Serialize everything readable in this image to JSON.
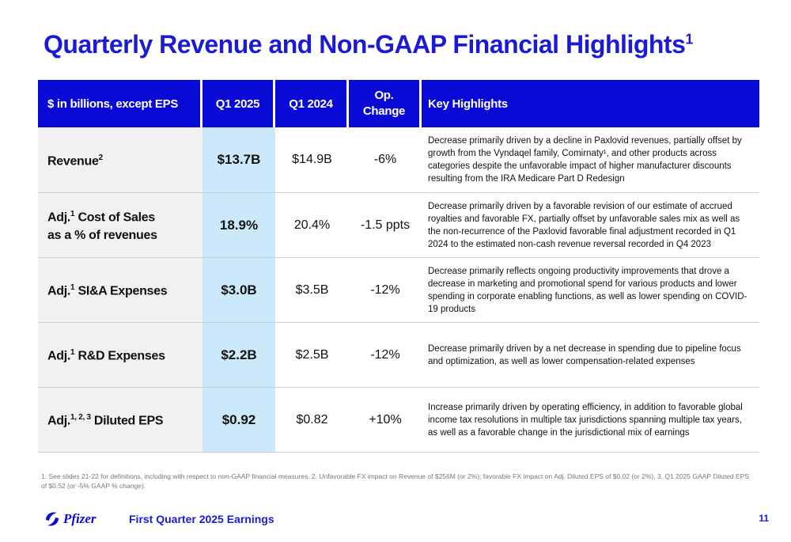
{
  "title": {
    "text": "Quarterly Revenue and Non-GAAP Financial Highlights",
    "sup": "1"
  },
  "table": {
    "headers": [
      "$ in billions, except EPS",
      "Q1 2025",
      "Q1 2024",
      "Op. Change",
      "Key Highlights"
    ],
    "rows": [
      {
        "label": "Revenue",
        "label_sup": "2",
        "q1_2025": "$13.7B",
        "q1_2024": "$14.9B",
        "change": "-6%",
        "highlight": "Decrease primarily driven by a decline in Paxlovid revenues, partially offset by growth from the Vyndaqel family, Comirnaty¹, and other products across categories despite the unfavorable impact of higher manufacturer discounts resulting from the IRA Medicare Part D Redesign"
      },
      {
        "label_prefix": "Adj.",
        "label_sup": "1",
        "label": "Cost of Sales",
        "label_line2": "as a % of revenues",
        "q1_2025": "18.9%",
        "q1_2024": "20.4%",
        "change": "-1.5 ppts",
        "highlight": "Decrease primarily driven by a favorable revision of our estimate of accrued royalties and favorable FX, partially offset by unfavorable sales mix as well as the non-recurrence of the Paxlovid favorable final adjustment recorded in Q1 2024 to the estimated non-cash revenue reversal recorded in Q4 2023"
      },
      {
        "label_prefix": "Adj.",
        "label_sup": "1",
        "label": "SI&A Expenses",
        "q1_2025": "$3.0B",
        "q1_2024": "$3.5B",
        "change": "-12%",
        "highlight": "Decrease primarily reflects ongoing productivity improvements that drove a decrease in marketing and promotional spend for various products and lower spending in corporate enabling functions, as well as lower spending on COVID-19 products"
      },
      {
        "label_prefix": "Adj.",
        "label_sup": "1",
        "label": "R&D Expenses",
        "q1_2025": "$2.2B",
        "q1_2024": "$2.5B",
        "change": "-12%",
        "highlight": "Decrease primarily driven by a net decrease in spending due to pipeline focus and optimization, as well as lower compensation-related expenses"
      },
      {
        "label_prefix": "Adj.",
        "label_sup": "1, 2, 3",
        "label": "Diluted EPS",
        "q1_2025": "$0.92",
        "q1_2024": "$0.82",
        "change": "+10%",
        "highlight": "Increase primarily driven by operating efficiency, in addition to favorable global income tax resolutions in multiple tax jurisdictions spanning multiple tax years, as well as a favorable change in the jurisdictional mix of earnings"
      }
    ]
  },
  "footnote": "1.  See slides 21-22 for definitions, including with respect to non-GAAP financial measures. 2. Unfavorable FX impact on Revenue of $256M (or 2%); favorable FX impact on Adj. Diluted EPS of $0.02 (or 2%). 3. Q1 2025 GAAP Diluted EPS of $0.52 (or -5% GAAP % change).",
  "footer": {
    "logo_text": "Pfizer",
    "event": "First Quarter 2025 Earnings",
    "page": "11"
  },
  "colors": {
    "brand_blue": "#0a0ad6",
    "highlight_col": "#cce9fb",
    "label_bg": "#f1f1f1"
  }
}
